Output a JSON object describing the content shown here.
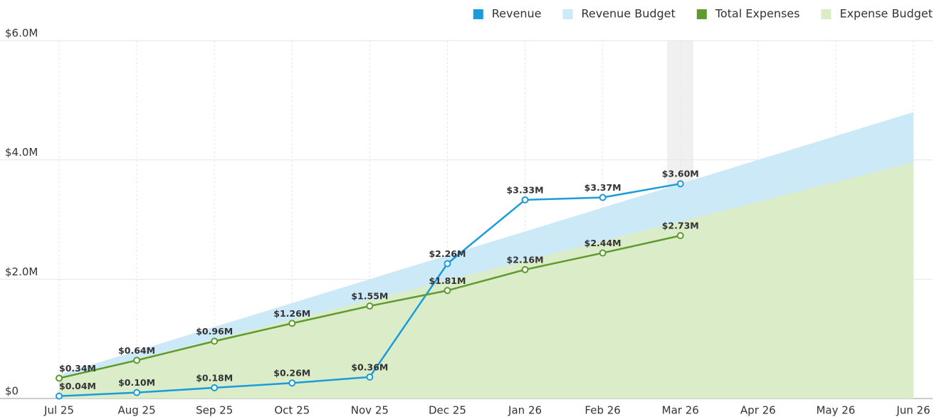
{
  "chart_data": {
    "type": "line",
    "categories": [
      "Jul 25",
      "Aug 25",
      "Sep 25",
      "Oct 25",
      "Nov 25",
      "Dec 25",
      "Jan 26",
      "Feb 26",
      "Mar 26",
      "Apr 26",
      "May 26",
      "Jun 26"
    ],
    "ylim": [
      0,
      6
    ],
    "yticks": [
      {
        "value": 0,
        "label": "$0"
      },
      {
        "value": 2,
        "label": "$2.0M"
      },
      {
        "value": 4,
        "label": "$4.0M"
      },
      {
        "value": 6,
        "label": "$6.0M"
      }
    ],
    "grid": true,
    "legend": "top-right",
    "series": [
      {
        "name": "Revenue",
        "color": "#1a9bdb",
        "style": "line",
        "values": [
          0.04,
          0.1,
          0.18,
          0.26,
          0.36,
          2.26,
          3.33,
          3.37,
          3.6,
          null,
          null,
          null
        ],
        "value_labels": [
          "$0.04M",
          "$0.10M",
          "$0.18M",
          "$0.26M",
          "$0.36M",
          "$2.26M",
          "$3.33M",
          "$3.37M",
          "$3.60M",
          null,
          null,
          null
        ]
      },
      {
        "name": "Revenue Budget",
        "color": "#cce9f8",
        "style": "area",
        "values": [
          0.4,
          0.8,
          1.2,
          1.6,
          2.0,
          2.4,
          2.8,
          3.2,
          3.6,
          4.0,
          4.4,
          4.8
        ]
      },
      {
        "name": "Total Expenses",
        "color": "#5e9a2e",
        "style": "line",
        "values": [
          0.34,
          0.64,
          0.96,
          1.26,
          1.55,
          1.81,
          2.16,
          2.44,
          2.73,
          null,
          null,
          null
        ],
        "value_labels": [
          "$0.34M",
          "$0.64M",
          "$0.96M",
          "$1.26M",
          "$1.55M",
          "$1.81M",
          "$2.16M",
          "$2.44M",
          "$2.73M",
          null,
          null,
          null
        ]
      },
      {
        "name": "Expense Budget",
        "color": "#dbecc9",
        "style": "area",
        "values": [
          0.33,
          0.66,
          0.99,
          1.32,
          1.65,
          1.98,
          2.31,
          2.64,
          2.97,
          3.3,
          3.63,
          3.96
        ]
      }
    ]
  }
}
